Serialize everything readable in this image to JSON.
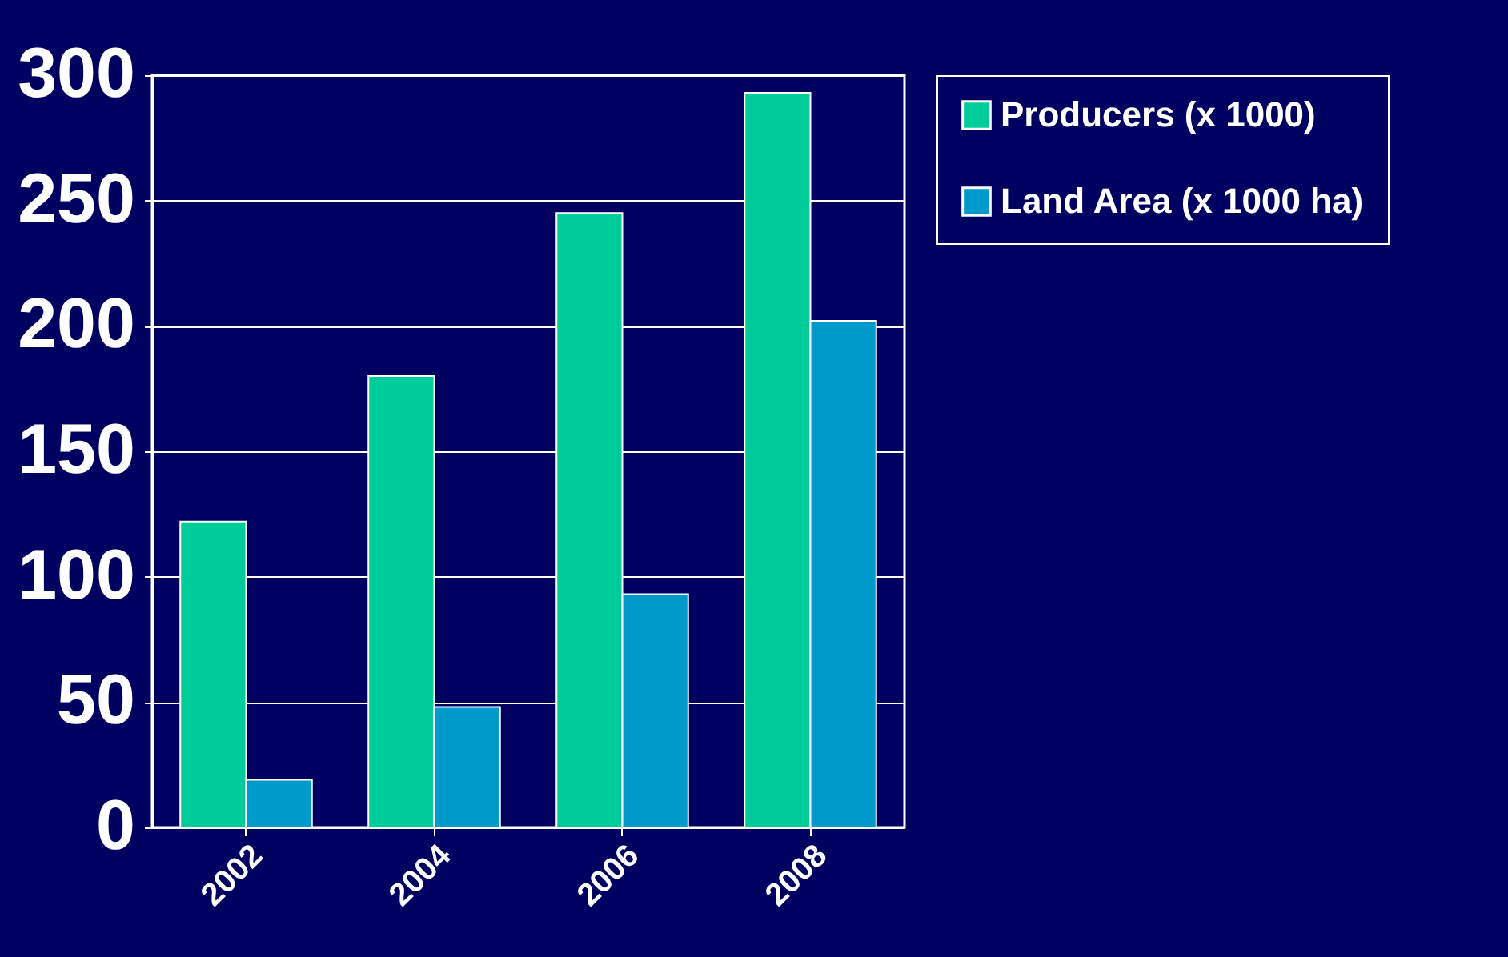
{
  "chart_data": {
    "type": "bar",
    "categories": [
      "2002",
      "2004",
      "2006",
      "2008"
    ],
    "series": [
      {
        "name": "Producers (x 1000)",
        "color": "#00cc99",
        "values": [
          122,
          180,
          245,
          293
        ]
      },
      {
        "name": "Land Area (x 1000 ha)",
        "color": "#0099cc",
        "values": [
          19,
          48,
          93,
          202
        ]
      }
    ],
    "ylim": [
      0,
      300
    ],
    "yticks": [
      0,
      50,
      100,
      150,
      200,
      250,
      300
    ],
    "grid": "y",
    "legend": "right"
  }
}
